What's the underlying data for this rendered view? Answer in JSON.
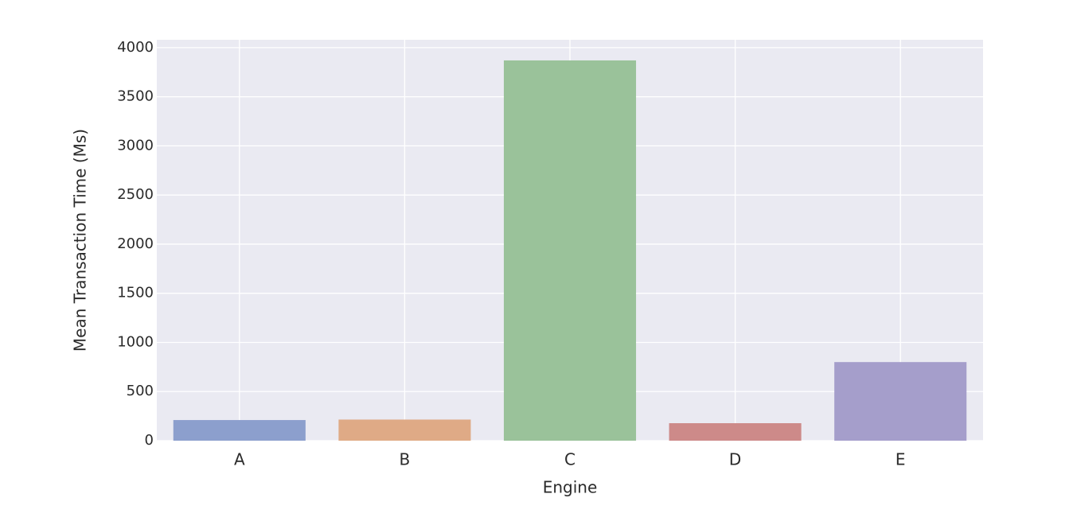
{
  "chart_data": {
    "type": "bar",
    "x_label": "Engine",
    "y_label": "Mean Transaction Time (Ms)",
    "categories": [
      "A",
      "B",
      "C",
      "D",
      "E"
    ],
    "values": [
      210,
      215,
      3870,
      178,
      800
    ],
    "colors": [
      "#8c9fcd",
      "#dfaa86",
      "#9ac29a",
      "#cd8a89",
      "#a59ecb"
    ],
    "ylim": [
      0,
      4080
    ],
    "yticks": [
      0,
      500,
      1000,
      1500,
      2000,
      2500,
      3000,
      3500,
      4000
    ],
    "grid": true
  }
}
